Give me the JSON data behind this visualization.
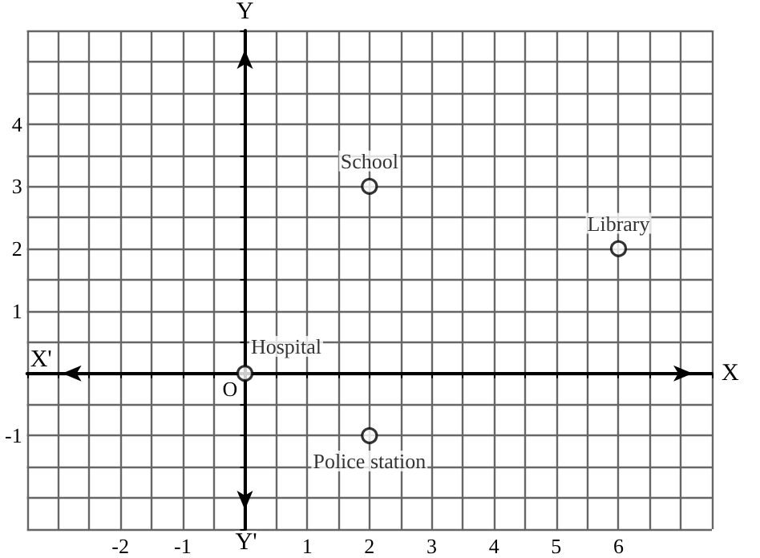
{
  "chart_data": {
    "type": "scatter",
    "xlabel": "X",
    "ylabel": "Y",
    "x": [
      0,
      2,
      6,
      2
    ],
    "values": [
      0,
      3,
      2,
      -1
    ],
    "value_labels": [
      "Hospital",
      "School",
      "Library",
      "Police station"
    ],
    "color": "#000000",
    "marker": "circle",
    "grid": true,
    "xlim": [
      -3.5,
      7.5
    ],
    "ylim": [
      -2.5,
      5.5
    ],
    "xticks": [
      {
        "value": -3.5,
        "label": null
      },
      {
        "value": -3,
        "label": null
      },
      {
        "value": -2.5,
        "label": null
      },
      -2,
      {
        "value": -1.5,
        "label": null
      },
      -1,
      {
        "value": -0.5,
        "label": null
      },
      {
        "value": 0,
        "label": null
      },
      {
        "value": 0.5,
        "label": null
      },
      1,
      {
        "value": 1.5,
        "label": null
      },
      2,
      {
        "value": 2.5,
        "label": null
      },
      3,
      {
        "value": 3.5,
        "label": null
      },
      4,
      {
        "value": 4.5,
        "label": null
      },
      5,
      {
        "value": 5.5,
        "label": null
      },
      6,
      {
        "value": 6.5,
        "label": null
      },
      {
        "value": 7,
        "label": null
      },
      {
        "value": 7.5,
        "label": null
      }
    ],
    "yticks": [
      {
        "value": -2.5,
        "label": null
      },
      {
        "value": -2,
        "label": null
      },
      {
        "value": -1.5,
        "label": null
      },
      -1,
      {
        "value": -0.5,
        "label": null
      },
      {
        "value": 0,
        "label": null
      },
      {
        "value": 0.5,
        "label": null
      },
      1,
      {
        "value": 1.5,
        "label": null
      },
      2,
      {
        "value": 2.5,
        "label": null
      },
      3,
      {
        "value": 3.5,
        "label": null
      },
      4,
      {
        "value": 4.5,
        "label": null
      },
      {
        "value": 5,
        "label": null
      },
      {
        "value": 5.5,
        "label": null
      }
    ],
    "annotations": [
      "X'",
      "Y'",
      "O"
    ]
  }
}
